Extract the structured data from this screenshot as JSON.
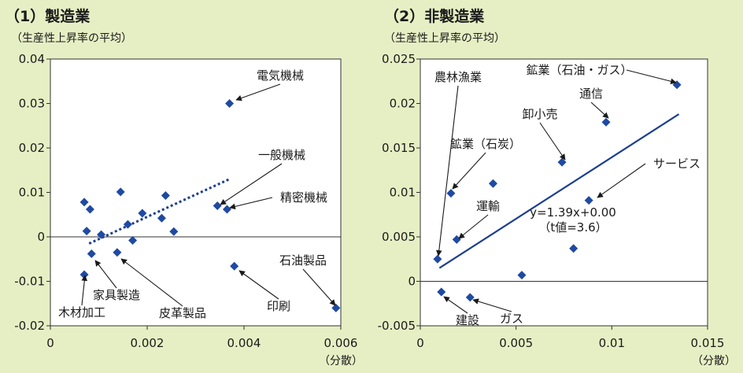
{
  "chart_data": [
    {
      "type": "scatter",
      "title": "（1）製造業",
      "ylabel": "（生産性上昇率の平均）",
      "xlabel": "（分散）",
      "xlim": [
        0,
        0.006
      ],
      "ylim": [
        -0.02,
        0.04
      ],
      "xticks": [
        0,
        0.002,
        0.004,
        0.006
      ],
      "xtick_labels": [
        "0",
        "0.002",
        "0.004",
        "0.006"
      ],
      "yticks": [
        -0.02,
        -0.01,
        0,
        0.01,
        0.02,
        0.03,
        0.04
      ],
      "ytick_labels": [
        "-0.02",
        "-0.01",
        "0",
        "0.01",
        "0.02",
        "0.03",
        "0.04"
      ],
      "points": [
        {
          "x": 0.0037,
          "y": 0.03,
          "label": "電気機械"
        },
        {
          "x": 0.00345,
          "y": 0.007,
          "label": "一般機械"
        },
        {
          "x": 0.00365,
          "y": 0.0062,
          "label": "精密機械"
        },
        {
          "x": 0.0059,
          "y": -0.016,
          "label": "石油製品"
        },
        {
          "x": 0.0038,
          "y": -0.0066,
          "label": "印刷"
        },
        {
          "x": 0.00138,
          "y": -0.0035,
          "label": "皮革製品"
        },
        {
          "x": 0.00085,
          "y": -0.0038,
          "label": "家具製造"
        },
        {
          "x": 0.0007,
          "y": -0.0085,
          "label": "木材加工"
        },
        {
          "x": 0.0007,
          "y": 0.0078,
          "label": ""
        },
        {
          "x": 0.00082,
          "y": 0.0062,
          "label": ""
        },
        {
          "x": 0.00075,
          "y": 0.0013,
          "label": ""
        },
        {
          "x": 0.00105,
          "y": 0.0005,
          "label": ""
        },
        {
          "x": 0.00145,
          "y": 0.0101,
          "label": ""
        },
        {
          "x": 0.0016,
          "y": 0.0028,
          "label": ""
        },
        {
          "x": 0.0017,
          "y": -0.0008,
          "label": ""
        },
        {
          "x": 0.0019,
          "y": 0.0053,
          "label": ""
        },
        {
          "x": 0.00238,
          "y": 0.0093,
          "label": ""
        },
        {
          "x": 0.0023,
          "y": 0.0042,
          "label": ""
        },
        {
          "x": 0.00255,
          "y": 0.0012,
          "label": ""
        }
      ],
      "trendline": {
        "style": "dotted",
        "x": [
          0.0008,
          0.0037
        ],
        "y": [
          -0.0015,
          0.013
        ]
      }
    },
    {
      "type": "scatter",
      "title": "（2）非製造業",
      "ylabel": "（生産性上昇率の平均）",
      "xlabel": "（分散）",
      "xlim": [
        0,
        0.015
      ],
      "ylim": [
        -0.005,
        0.025
      ],
      "xticks": [
        0,
        0.005,
        0.01,
        0.015
      ],
      "xtick_labels": [
        "0",
        "0.005",
        "0.01",
        "0.015"
      ],
      "yticks": [
        -0.005,
        0,
        0.005,
        0.01,
        0.015,
        0.02,
        0.025
      ],
      "ytick_labels": [
        "-0.005",
        "0",
        "0.005",
        "0.01",
        "0.015",
        "0.02",
        "0.025"
      ],
      "points": [
        {
          "x": 0.0009,
          "y": 0.0025,
          "label": "農林漁業"
        },
        {
          "x": 0.0016,
          "y": 0.0099,
          "label": "鉱業（石炭）"
        },
        {
          "x": 0.0019,
          "y": 0.0047,
          "label": "運輸"
        },
        {
          "x": 0.0074,
          "y": 0.0134,
          "label": "卸小売"
        },
        {
          "x": 0.0097,
          "y": 0.0179,
          "label": "通信"
        },
        {
          "x": 0.0134,
          "y": 0.0221,
          "label": "鉱業（石油・ガス）"
        },
        {
          "x": 0.0088,
          "y": 0.0091,
          "label": "サービス"
        },
        {
          "x": 0.0011,
          "y": -0.0012,
          "label": "建設"
        },
        {
          "x": 0.0026,
          "y": -0.0018,
          "label": "ガス"
        },
        {
          "x": 0.0038,
          "y": 0.011,
          "label": ""
        },
        {
          "x": 0.0053,
          "y": 0.0007,
          "label": ""
        },
        {
          "x": 0.008,
          "y": 0.0037,
          "label": ""
        }
      ],
      "trendline": {
        "style": "solid",
        "x": [
          0.001,
          0.0135
        ],
        "y": [
          0.0015,
          0.0188
        ]
      },
      "annotation": [
        "y=1.39x+0.00",
        "（t値=3.6）"
      ]
    }
  ],
  "colors": {
    "background": "#e6efc4",
    "plot_area": "#ffffff",
    "marker": "#1f4aa3",
    "trendline": "#1d3f8f",
    "text": "#1a1a1a"
  },
  "marker_shape": "diamond"
}
